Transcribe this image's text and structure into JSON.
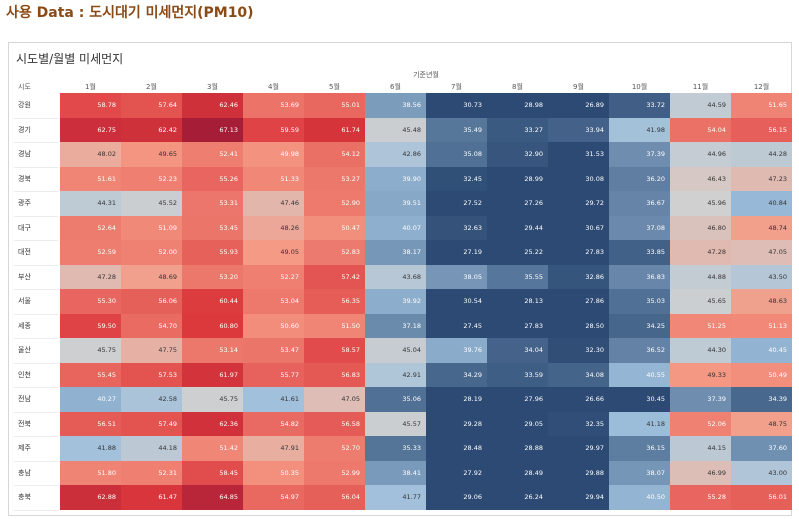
{
  "page_heading": "사용 Data : 도시대기 미세먼지(PM10)",
  "chart_data": {
    "type": "heatmap",
    "title": "시도별/월별 미세먼지",
    "xlabel": "기준년월",
    "row_header": "시도",
    "columns": [
      "1월",
      "2월",
      "3월",
      "4월",
      "5월",
      "6월",
      "7월",
      "8월",
      "9월",
      "10월",
      "11월",
      "12월"
    ],
    "rows": [
      "강원",
      "경기",
      "경남",
      "경북",
      "광주",
      "대구",
      "대전",
      "부산",
      "서울",
      "세종",
      "울산",
      "인천",
      "전남",
      "전북",
      "제주",
      "충남",
      "충북"
    ],
    "values": [
      [
        "58.78",
        "57.64",
        "62.46",
        "53.69",
        "55.01",
        "38.56",
        "30.73",
        "28.98",
        "26.89",
        "33.72",
        "44.59",
        "51.65"
      ],
      [
        "62.75",
        "62.42",
        "67.13",
        "59.59",
        "61.74",
        "45.48",
        "35.49",
        "33.27",
        "33.94",
        "41.98",
        "54.04",
        "56.15"
      ],
      [
        "48.02",
        "49.65",
        "52.41",
        "49.98",
        "54.12",
        "42.86",
        "35.08",
        "32.90",
        "31.53",
        "37.39",
        "44.96",
        "44.28"
      ],
      [
        "51.61",
        "52.23",
        "55.26",
        "51.33",
        "53.27",
        "39.90",
        "32.45",
        "28.99",
        "30.08",
        "36.20",
        "46.43",
        "47.23"
      ],
      [
        "44.31",
        "45.52",
        "53.31",
        "47.46",
        "52.90",
        "39.51",
        "27.52",
        "27.26",
        "29.72",
        "36.67",
        "45.96",
        "40.84"
      ],
      [
        "52.64",
        "51.09",
        "53.45",
        "48.26",
        "50.47",
        "40.07",
        "32.63",
        "29.44",
        "30.67",
        "37.08",
        "46.80",
        "48.74"
      ],
      [
        "52.59",
        "52.00",
        "55.93",
        "49.05",
        "52.83",
        "38.17",
        "27.19",
        "25.22",
        "27.83",
        "33.85",
        "47.28",
        "47.05"
      ],
      [
        "47.28",
        "48.69",
        "53.20",
        "52.27",
        "57.42",
        "43.68",
        "38.05",
        "35.55",
        "32.86",
        "36.83",
        "44.88",
        "43.50"
      ],
      [
        "55.30",
        "56.06",
        "60.44",
        "53.04",
        "56.35",
        "39.92",
        "30.54",
        "28.13",
        "27.86",
        "35.03",
        "45.65",
        "48.63"
      ],
      [
        "59.50",
        "54.70",
        "60.80",
        "50.60",
        "51.50",
        "37.18",
        "27.45",
        "27.83",
        "28.50",
        "34.25",
        "51.25",
        "51.13"
      ],
      [
        "45.75",
        "47.75",
        "53.14",
        "53.47",
        "58.57",
        "45.04",
        "39.76",
        "34.04",
        "32.30",
        "36.52",
        "44.30",
        "40.45"
      ],
      [
        "55.45",
        "57.53",
        "61.97",
        "55.77",
        "56.83",
        "42.91",
        "34.29",
        "33.59",
        "34.08",
        "40.55",
        "49.33",
        "50.49"
      ],
      [
        "40.27",
        "42.58",
        "45.75",
        "41.61",
        "47.05",
        "35.06",
        "28.19",
        "27.96",
        "26.66",
        "30.45",
        "37.39",
        "34.39"
      ],
      [
        "56.51",
        "57.49",
        "62.36",
        "54.82",
        "56.58",
        "45.57",
        "29.28",
        "29.05",
        "32.35",
        "41.18",
        "52.06",
        "48.75"
      ],
      [
        "41.88",
        "44.18",
        "51.42",
        "47.91",
        "52.70",
        "35.33",
        "28.48",
        "28.88",
        "29.97",
        "36.15",
        "44.15",
        "37.60"
      ],
      [
        "51.80",
        "52.31",
        "58.45",
        "50.35",
        "52.99",
        "38.41",
        "27.92",
        "28.49",
        "29.88",
        "38.07",
        "46.99",
        "43.00"
      ],
      [
        "62.88",
        "61.47",
        "64.85",
        "54.97",
        "56.04",
        "41.77",
        "29.06",
        "26.24",
        "29.94",
        "40.50",
        "55.28",
        "56.01"
      ]
    ],
    "color_scale": {
      "low": "#2c4a73",
      "mid_low": "#9ebfdc",
      "mid": "#d0d0d0",
      "mid_high": "#f59a85",
      "high": "#a51d37",
      "domain": [
        25,
        46,
        67
      ]
    }
  }
}
